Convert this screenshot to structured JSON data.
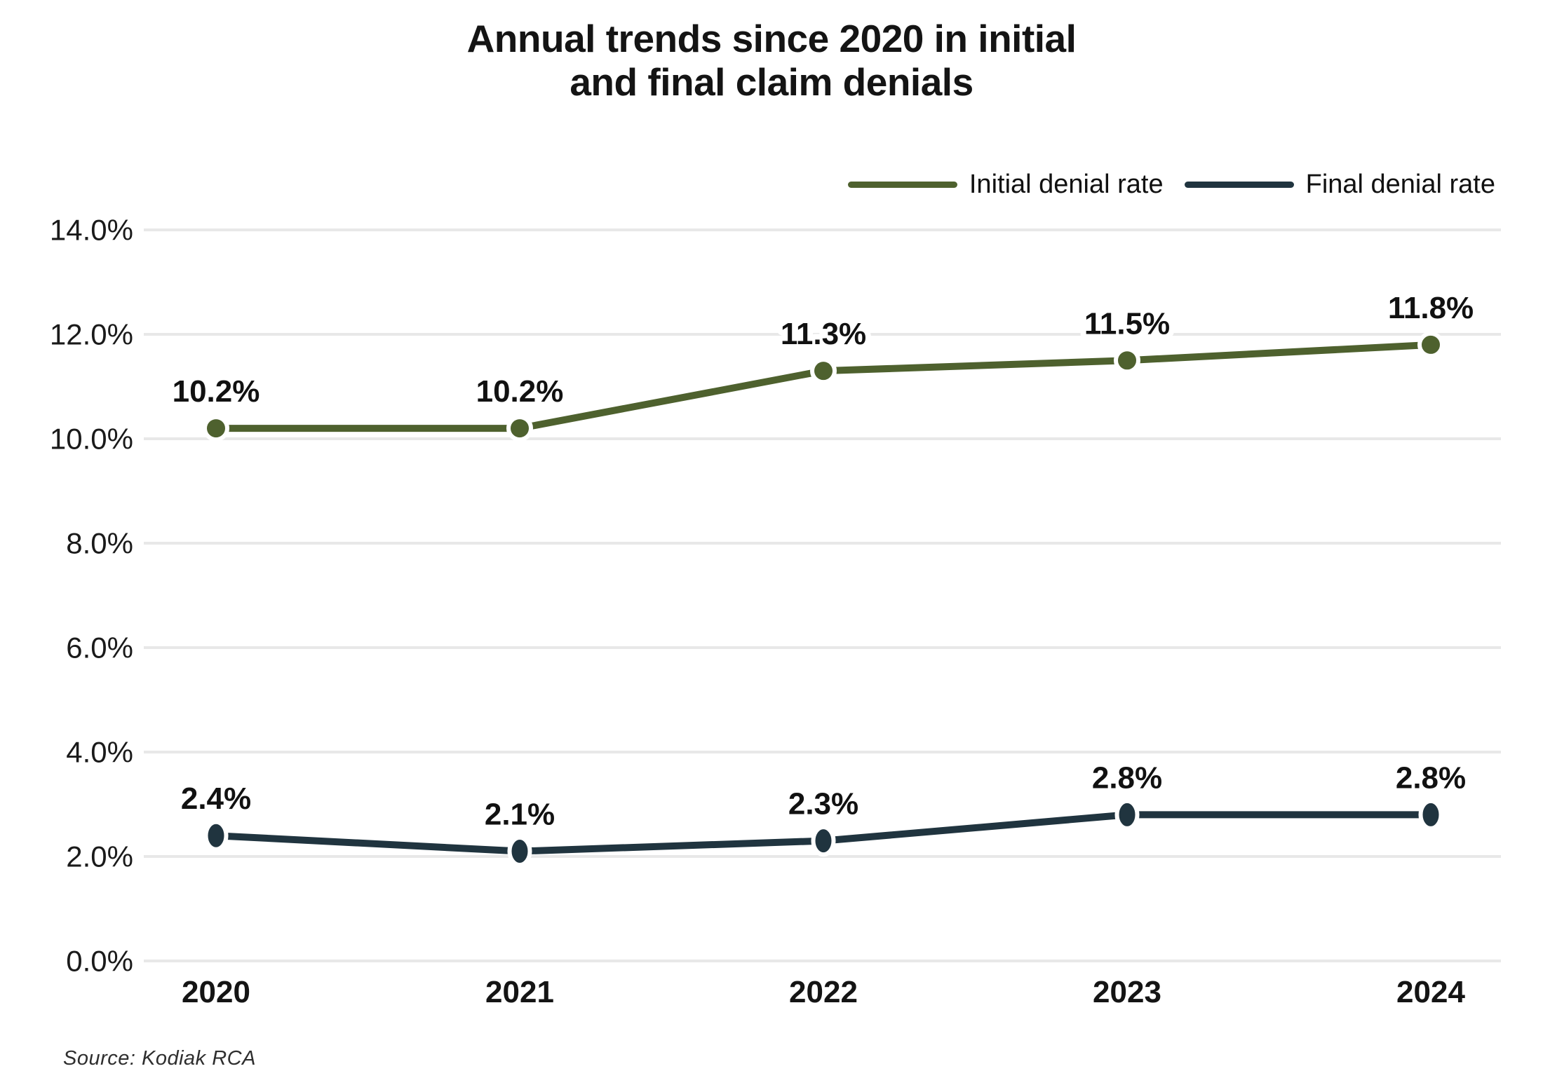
{
  "title": {
    "line1": "Annual trends since 2020 in initial",
    "line2": "and final claim denials"
  },
  "legend": [
    {
      "label": "Initial denial rate",
      "color": "#4e612e"
    },
    {
      "label": "Final denial rate",
      "color": "#20343f"
    }
  ],
  "source": "Source: Kodiak RCA",
  "colors": {
    "initial_series": "#4e612e",
    "final_series": "#20343f",
    "gridline": "#e8e8e8",
    "text": "#141414",
    "background": "#ffffff"
  },
  "chart_data": {
    "type": "line",
    "title": "Annual trends since 2020 in initial and final claim denials",
    "categories": [
      "2020",
      "2021",
      "2022",
      "2023",
      "2024"
    ],
    "series": [
      {
        "name": "Initial denial rate",
        "color": "#4e612e",
        "values": [
          10.2,
          10.2,
          11.3,
          11.5,
          11.8
        ],
        "point_labels": [
          "10.2%",
          "10.2%",
          "11.3%",
          "11.5%",
          "11.8%"
        ]
      },
      {
        "name": "Final denial rate",
        "color": "#20343f",
        "values": [
          2.4,
          2.1,
          2.3,
          2.8,
          2.8
        ],
        "point_labels": [
          "2.4%",
          "2.1%",
          "2.3%",
          "2.8%",
          "2.8%"
        ]
      }
    ],
    "xlabel": "",
    "ylabel": "",
    "ylim": [
      0,
      14
    ],
    "y_tick_step": 2,
    "y_tick_labels": [
      "0.0%",
      "2.0%",
      "4.0%",
      "6.0%",
      "8.0%",
      "10.0%",
      "12.0%",
      "14.0%"
    ],
    "grid": true,
    "legend_position": "top-right",
    "source": "Source: Kodiak RCA"
  }
}
